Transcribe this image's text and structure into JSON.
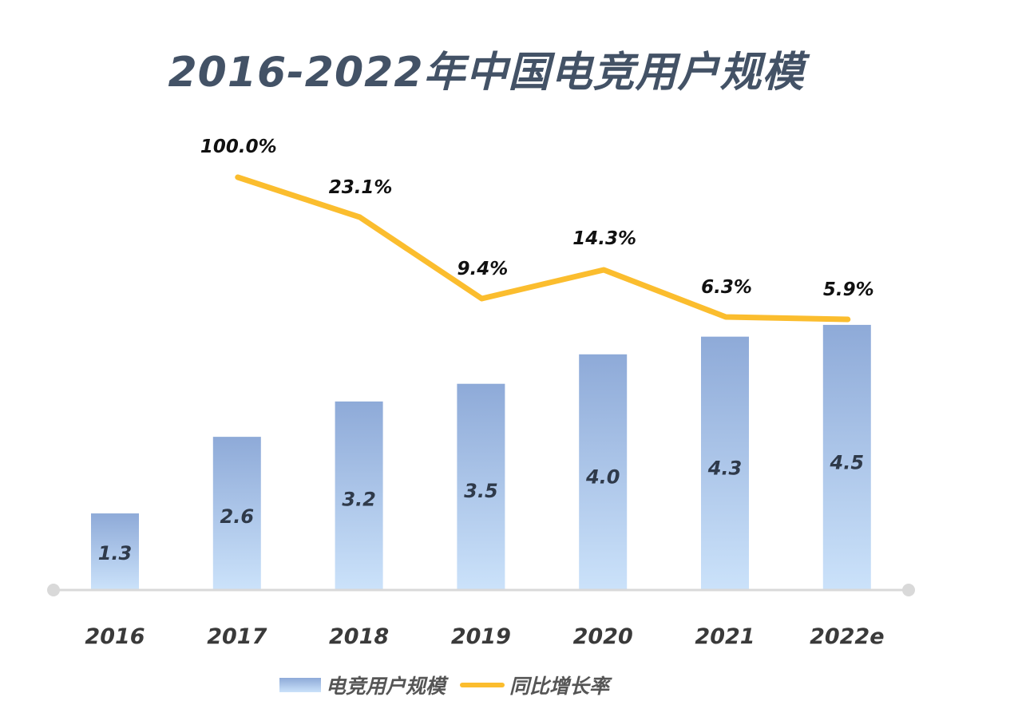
{
  "chart_data": {
    "type": "bar",
    "title": "2016-2022年中国电竞用户规模",
    "xlabel": "",
    "ylabel": "",
    "categories": [
      "2016",
      "2017",
      "2018",
      "2019",
      "2020",
      "2021",
      "2022e"
    ],
    "series": [
      {
        "name": "电竞用户规模",
        "type": "bar",
        "values": [
          1.3,
          2.6,
          3.2,
          3.5,
          4.0,
          4.3,
          4.5
        ],
        "labels": [
          "1.3",
          "2.6",
          "3.2",
          "3.5",
          "4.0",
          "4.3",
          "4.5"
        ],
        "color_top": "#8eaad8",
        "color_bottom": "#cbe2fa"
      },
      {
        "name": "同比增长率",
        "type": "line",
        "values": [
          null,
          100.0,
          23.1,
          9.4,
          14.3,
          6.3,
          5.9
        ],
        "labels": [
          "",
          "100.0%",
          "23.1%",
          "9.4%",
          "14.3%",
          "6.3%",
          "5.9%"
        ],
        "color": "#fbbd2e"
      }
    ],
    "ylim": [
      0,
      5
    ],
    "grid": false,
    "legend": "bottom-center",
    "axis_color": "#d9d9d9"
  },
  "legend": {
    "bar_label": "电竞用户规模",
    "line_label": "同比增长率"
  }
}
